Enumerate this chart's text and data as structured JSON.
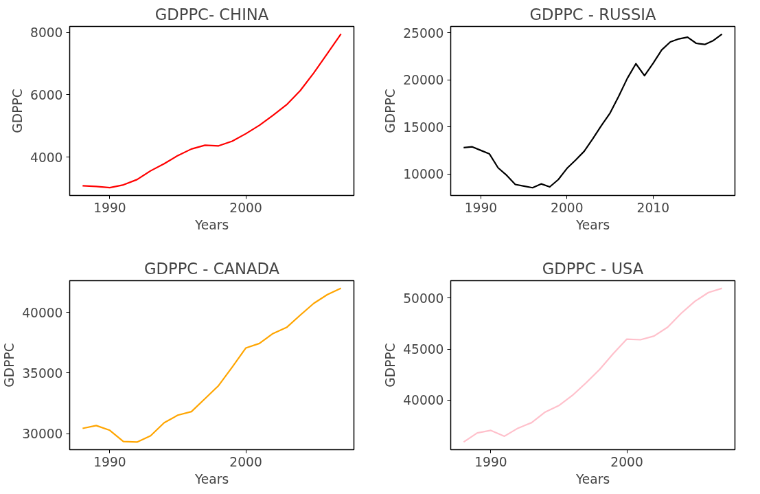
{
  "chart_data": [
    {
      "type": "line",
      "title": "GDPPC- CHINA",
      "xlabel": "Years",
      "ylabel": "GDPPC",
      "x": [
        1988,
        1989,
        1990,
        1991,
        1992,
        1993,
        1994,
        1995,
        1996,
        1997,
        1998,
        1999,
        2000,
        2001,
        2002,
        2003,
        2004,
        2005,
        2006,
        2007
      ],
      "series": [
        {
          "color": "#ff0000",
          "values": [
            3080,
            3060,
            3020,
            3110,
            3280,
            3560,
            3790,
            4050,
            4260,
            4380,
            4360,
            4510,
            4750,
            5020,
            5340,
            5680,
            6130,
            6700,
            7320,
            7950
          ]
        }
      ],
      "xlim": [
        1987.05,
        2007.95
      ],
      "ylim": [
        2770,
        8190
      ],
      "xticks": [
        1990,
        2000
      ],
      "yticks": [
        4000,
        6000,
        8000
      ],
      "grid": false
    },
    {
      "type": "line",
      "title": "GDPPC - RUSSIA",
      "xlabel": "Years",
      "ylabel": "GDPPC",
      "x": [
        1988,
        1989,
        1990,
        1991,
        1992,
        1993,
        1994,
        1995,
        1996,
        1997,
        1998,
        1999,
        2000,
        2001,
        2002,
        2003,
        2004,
        2005,
        2006,
        2007,
        2008,
        2009,
        2010,
        2011,
        2012,
        2013,
        2014,
        2015,
        2016,
        2017,
        2018
      ],
      "series": [
        {
          "color": "#000000",
          "values": [
            12790,
            12880,
            12500,
            12120,
            10650,
            9850,
            8880,
            8700,
            8530,
            8940,
            8620,
            9410,
            10590,
            11470,
            12410,
            13740,
            15150,
            16470,
            18240,
            20150,
            21710,
            20440,
            21760,
            23180,
            24030,
            24350,
            24530,
            23880,
            23760,
            24180,
            24850
          ]
        }
      ],
      "xlim": [
        1986.5,
        2019.5
      ],
      "ylim": [
        7710,
        25670
      ],
      "xticks": [
        1990,
        2000,
        2010
      ],
      "yticks": [
        10000,
        15000,
        20000,
        25000
      ],
      "grid": false
    },
    {
      "type": "line",
      "title": "GDPPC - CANADA",
      "xlabel": "Years",
      "ylabel": "GDPPC",
      "x": [
        1988,
        1989,
        1990,
        1991,
        1992,
        1993,
        1994,
        1995,
        1996,
        1997,
        1998,
        1999,
        2000,
        2001,
        2002,
        2003,
        2004,
        2005,
        2006,
        2007
      ],
      "series": [
        {
          "color": "#ffa500",
          "values": [
            30430,
            30660,
            30270,
            29340,
            29300,
            29820,
            30900,
            31520,
            31810,
            32880,
            33960,
            35480,
            37060,
            37440,
            38260,
            38760,
            39770,
            40750,
            41470,
            41990
          ]
        }
      ],
      "xlim": [
        1987.05,
        2007.95
      ],
      "ylim": [
        28670,
        42620
      ],
      "xticks": [
        1990,
        2000
      ],
      "yticks": [
        30000,
        35000,
        40000
      ],
      "grid": false
    },
    {
      "type": "line",
      "title": "GDPPC - USA",
      "xlabel": "Years",
      "ylabel": "GDPPC",
      "x": [
        1988,
        1989,
        1990,
        1991,
        1992,
        1993,
        1994,
        1995,
        1996,
        1997,
        1998,
        1999,
        2000,
        2001,
        2002,
        2003,
        2004,
        2005,
        2006,
        2007
      ],
      "series": [
        {
          "color": "#ffc0cb",
          "values": [
            35890,
            36780,
            37030,
            36460,
            37250,
            37790,
            38830,
            39460,
            40460,
            41690,
            43000,
            44550,
            45970,
            45910,
            46270,
            47140,
            48500,
            49670,
            50540,
            50950
          ]
        }
      ],
      "xlim": [
        1987.05,
        2007.95
      ],
      "ylim": [
        35140,
        51700
      ],
      "xticks": [
        1990,
        2000
      ],
      "yticks": [
        40000,
        45000,
        50000
      ],
      "grid": false
    }
  ]
}
